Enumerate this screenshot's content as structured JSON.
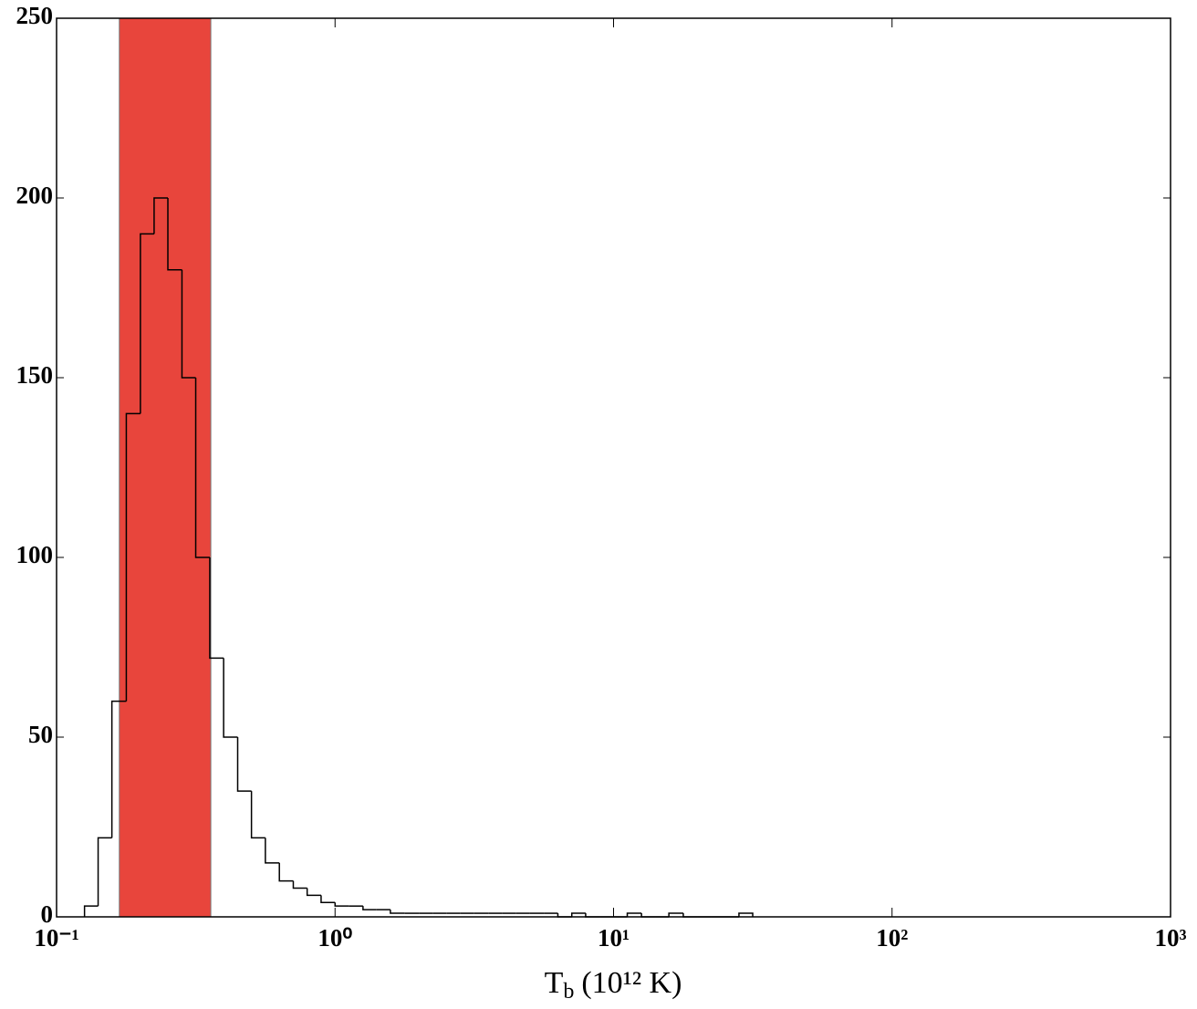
{
  "chart_data": {
    "type": "histogram",
    "xlabel": {
      "text": "T",
      "subscript": "b",
      "suffix": "(10¹² K)"
    },
    "xscale": "log",
    "xlim": [
      0.1,
      1000
    ],
    "xticks": [
      {
        "value": 0.1,
        "label": "10⁻¹"
      },
      {
        "value": 1,
        "label": "10⁰"
      },
      {
        "value": 10,
        "label": "10¹"
      },
      {
        "value": 100,
        "label": "10²"
      },
      {
        "value": 1000,
        "label": "10³"
      }
    ],
    "ylim": [
      0,
      250
    ],
    "yticks": [
      0,
      50,
      100,
      150,
      200,
      250
    ],
    "color": "#000000",
    "span": {
      "xmin": 0.168,
      "xmax": 0.358,
      "color": "#e8453c"
    },
    "bins": [
      0.126,
      0.141,
      0.158,
      0.178,
      0.2,
      0.224,
      0.251,
      0.282,
      0.316,
      0.355,
      0.398,
      0.447,
      0.501,
      0.562,
      0.631,
      0.708,
      0.794,
      0.891,
      1.0,
      1.12,
      1.26,
      1.41,
      1.58,
      1.78,
      2.0,
      2.24,
      2.51,
      2.82,
      3.16,
      3.55,
      3.98,
      4.47,
      5.01,
      5.62,
      6.31,
      7.08,
      7.94,
      8.91,
      10.0,
      11.2,
      12.6,
      14.1,
      15.8,
      17.8,
      20.0,
      22.4,
      25.1,
      28.2,
      31.6
    ],
    "values": [
      3,
      22,
      60,
      140,
      190,
      200,
      180,
      150,
      100,
      72,
      50,
      35,
      22,
      15,
      10,
      8,
      6,
      4,
      3,
      3,
      2,
      2,
      1,
      1,
      1,
      1,
      1,
      1,
      1,
      1,
      1,
      1,
      1,
      1,
      0,
      1,
      0,
      0,
      0,
      1,
      0,
      0,
      1,
      0,
      0,
      0,
      0,
      1
    ]
  }
}
